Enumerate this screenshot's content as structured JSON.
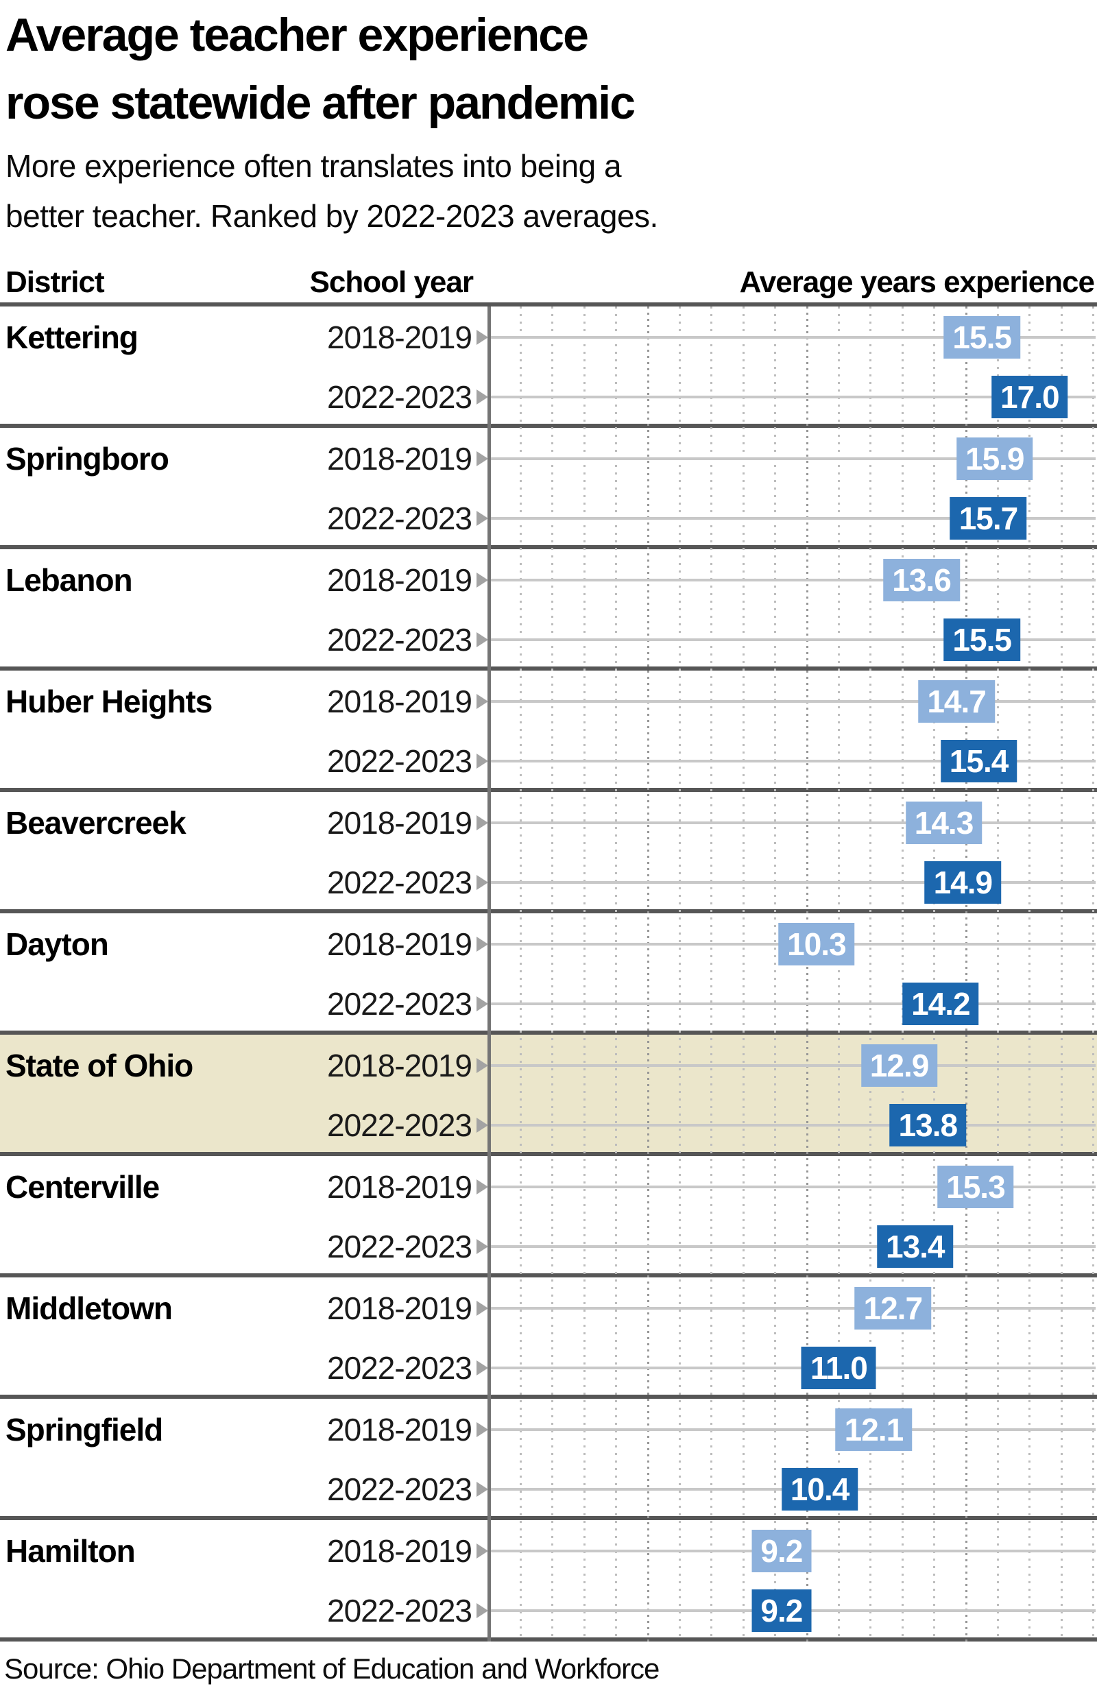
{
  "header": {
    "title_line1": "Average teacher experience",
    "title_line2": "rose statewide after pandemic",
    "subtitle_line1": "More experience often translates into being a",
    "subtitle_line2": "better teacher. Ranked by 2022-2023 averages."
  },
  "columns": {
    "district": "District",
    "school_year": "School year",
    "value": "Average years experience"
  },
  "source": "Source: Ohio Department of Education and Workforce",
  "chart_data": {
    "type": "bar",
    "title": "Average teacher experience rose statewide after pandemic",
    "subtitle": "More experience often translates into being a better teacher. Ranked by 2022-2023 averages.",
    "xlabel": "Average years experience",
    "ylabel": "District",
    "categories": [
      "Kettering",
      "Springboro",
      "Lebanon",
      "Huber Heights",
      "Beavercreek",
      "Dayton",
      "State of Ohio",
      "Centerville",
      "Middletown",
      "Springfield",
      "Hamilton"
    ],
    "series": [
      {
        "name": "2018-2019",
        "values": [
          15.5,
          15.9,
          13.6,
          14.7,
          14.3,
          10.3,
          12.9,
          15.3,
          12.7,
          12.1,
          9.2
        ]
      },
      {
        "name": "2022-2023",
        "values": [
          17.0,
          15.7,
          15.5,
          15.4,
          14.9,
          14.2,
          13.8,
          13.4,
          11.0,
          10.4,
          9.2
        ]
      }
    ],
    "highlight_category": "State of Ohio",
    "xlim": [
      0,
      19.1
    ],
    "grid": "on",
    "gridline_interval": 1,
    "major_gridline_interval": 5,
    "value_format_decimals": 1,
    "colors": {
      "series_2018_2019": "#8db1dc",
      "series_2022_2023": "#1c67ae",
      "highlight_row_bg": "#ebe6cb",
      "rule": "#565656",
      "track": "#c8c8c8",
      "grid_minor": "#bdbdbd",
      "grid_major": "#979797",
      "axis": "#757575",
      "triangle": "#a3a3a3"
    }
  }
}
